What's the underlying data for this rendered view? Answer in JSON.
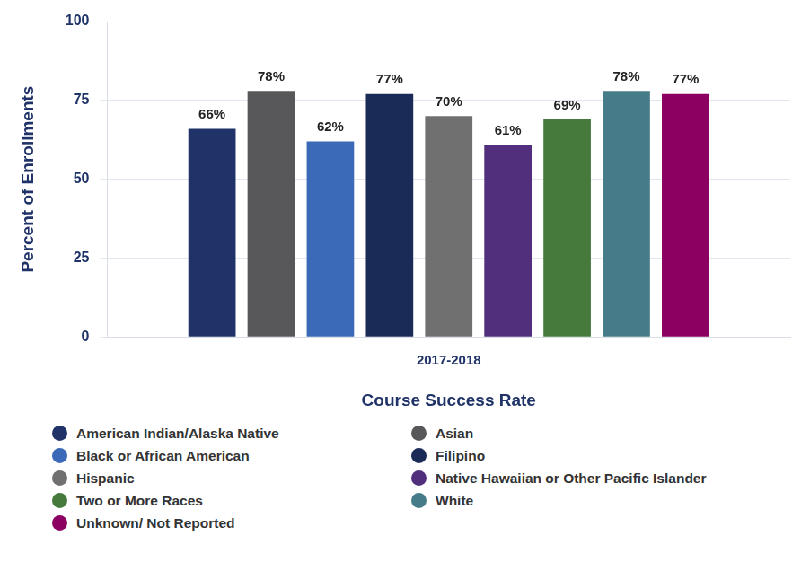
{
  "chart_data": {
    "type": "bar",
    "categories": [
      "2017-2018"
    ],
    "xlabel": "Course Success Rate",
    "ylabel": "Percent of Enrollments",
    "ylim": [
      0,
      100
    ],
    "yticks": [
      0,
      25,
      50,
      75,
      100
    ],
    "grid": true,
    "legend": "bottom",
    "data_labels": true,
    "series": [
      {
        "name": "American Indian/Alaska Native",
        "color": "#1f3368",
        "values": [
          66
        ],
        "value_labels": [
          "66%"
        ]
      },
      {
        "name": "Asian",
        "color": "#58585a",
        "values": [
          78
        ],
        "value_labels": [
          "78%"
        ]
      },
      {
        "name": "Black or African American",
        "color": "#3b6ab8",
        "values": [
          62
        ],
        "value_labels": [
          "62%"
        ]
      },
      {
        "name": "Filipino",
        "color": "#1a2b57",
        "values": [
          77
        ],
        "value_labels": [
          "77%"
        ]
      },
      {
        "name": "Hispanic",
        "color": "#707070",
        "values": [
          70
        ],
        "value_labels": [
          "70%"
        ]
      },
      {
        "name": "Native Hawaiian or Other Pacific Islander",
        "color": "#512f7c",
        "values": [
          61
        ],
        "value_labels": [
          "61%"
        ]
      },
      {
        "name": "Two or More Races",
        "color": "#457a3c",
        "values": [
          69
        ],
        "value_labels": [
          "69%"
        ]
      },
      {
        "name": "White",
        "color": "#467c89",
        "values": [
          78
        ],
        "value_labels": [
          "78%"
        ]
      },
      {
        "name": "Unknown/ Not Reported",
        "color": "#8b0060",
        "values": [
          77
        ],
        "value_labels": [
          "77%"
        ]
      }
    ]
  }
}
